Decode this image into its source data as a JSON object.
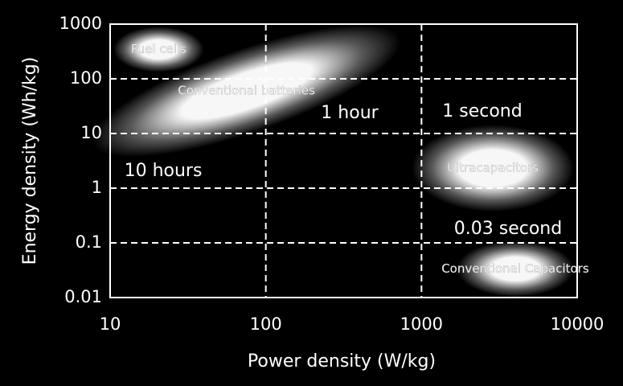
{
  "chart_data": {
    "type": "region",
    "x_label": "Power density (W/kg)",
    "y_label": "Energy density (Wh/kg)",
    "xlog": true,
    "ylog": true,
    "xlim": [
      10,
      10000
    ],
    "ylim": [
      0.01,
      1000
    ],
    "xticks": [
      10,
      100,
      1000,
      10000
    ],
    "yticks": [
      0.01,
      0.1,
      1,
      10,
      100,
      1000
    ],
    "grid": true,
    "color": "#ffffff",
    "annotations": [
      "10 hours",
      "1 hour",
      "1 second",
      "0.03 second"
    ],
    "regions": [
      {
        "name": "Fuel cells",
        "x": [
          12,
          35
        ],
        "y": [
          170,
          700
        ]
      },
      {
        "name": "Conventional batteries",
        "x": [
          12,
          470
        ],
        "y": [
          10,
          360
        ],
        "tilt": true
      },
      {
        "name": "Ultracapacitors",
        "x": [
          1100,
          7500
        ],
        "y": [
          0.6,
          9
        ]
      },
      {
        "name": "Conventional Capacitors",
        "x": [
          2000,
          8000
        ],
        "y": [
          0.014,
          0.08
        ]
      }
    ]
  }
}
